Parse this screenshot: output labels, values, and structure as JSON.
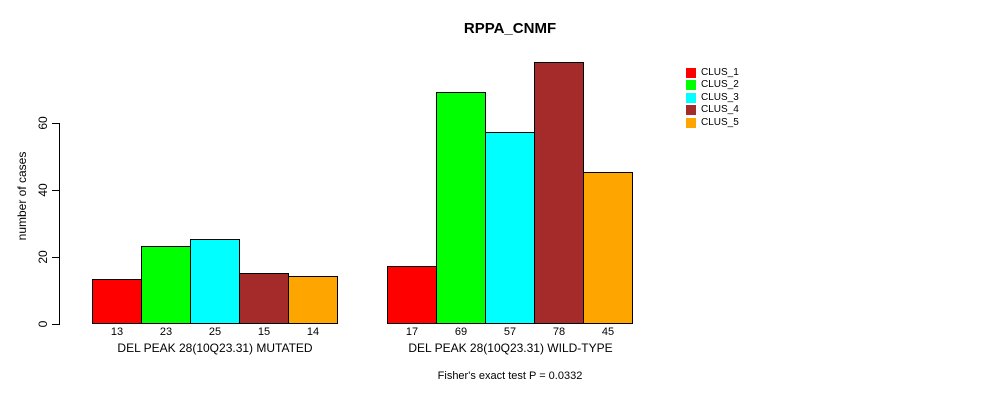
{
  "chart_data": {
    "type": "bar",
    "title": "RPPA_CNMF",
    "ylabel": "number of cases",
    "xlabel": "",
    "ylim": [
      0,
      78
    ],
    "yticks": [
      0,
      20,
      40,
      60
    ],
    "grid": false,
    "legend_position": "top-right",
    "categories": [
      "DEL PEAK 28(10Q23.31) MUTATED",
      "DEL PEAK 28(10Q23.31) WILD-TYPE"
    ],
    "series": [
      {
        "name": "CLUS_1",
        "color": "#ff0000",
        "values": [
          13,
          17
        ]
      },
      {
        "name": "CLUS_2",
        "color": "#00ff00",
        "values": [
          23,
          69
        ]
      },
      {
        "name": "CLUS_3",
        "color": "#00ffff",
        "values": [
          25,
          57
        ]
      },
      {
        "name": "CLUS_4",
        "color": "#a52a2a",
        "values": [
          15,
          78
        ]
      },
      {
        "name": "CLUS_5",
        "color": "#ffa500",
        "values": [
          14,
          45
        ]
      }
    ],
    "bar_value_labels_shown": true,
    "annotation": "Fisher's exact test P = 0.0332"
  }
}
